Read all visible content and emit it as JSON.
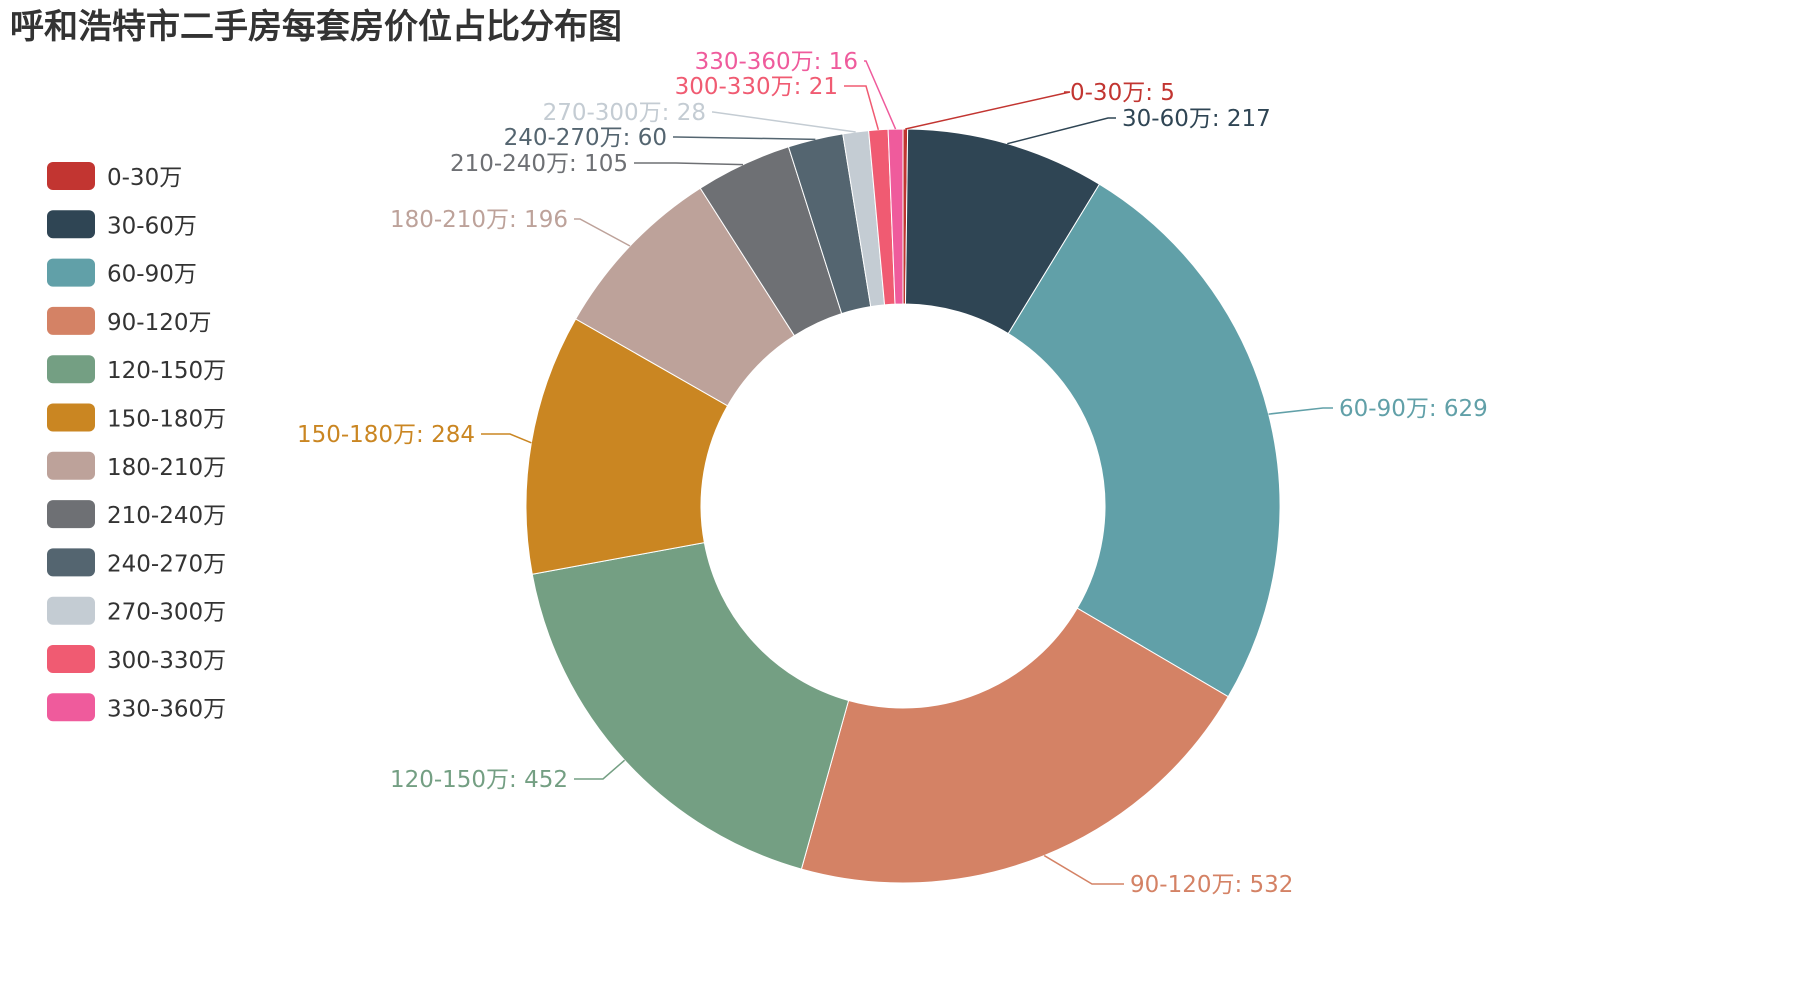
{
  "chart_data": {
    "type": "pie",
    "variant": "donut",
    "title": "呼和浩特市二手房每套房价位占比分布图",
    "legend_position": "left",
    "categories": [
      "0-30万",
      "30-60万",
      "60-90万",
      "90-120万",
      "120-150万",
      "150-180万",
      "180-210万",
      "210-240万",
      "240-270万",
      "270-300万",
      "300-330万",
      "330-360万"
    ],
    "values": [
      5,
      217,
      629,
      532,
      452,
      284,
      196,
      105,
      60,
      28,
      21,
      16
    ],
    "labels": [
      "0-30万: 5",
      "30-60万: 217",
      "60-90万: 629",
      "90-120万: 532",
      "120-150万: 452",
      "150-180万: 284",
      "180-210万: 196",
      "210-240万: 105",
      "240-270万: 60",
      "270-300万: 28",
      "300-330万: 21",
      "330-360万: 16"
    ],
    "colors": [
      "#c23531",
      "#2f4554",
      "#61a0a8",
      "#d48265",
      "#749f83",
      "#ca8622",
      "#bda29a",
      "#6e7074",
      "#546570",
      "#c4ccd3",
      "#f05b72",
      "#ef5b9c"
    ]
  }
}
